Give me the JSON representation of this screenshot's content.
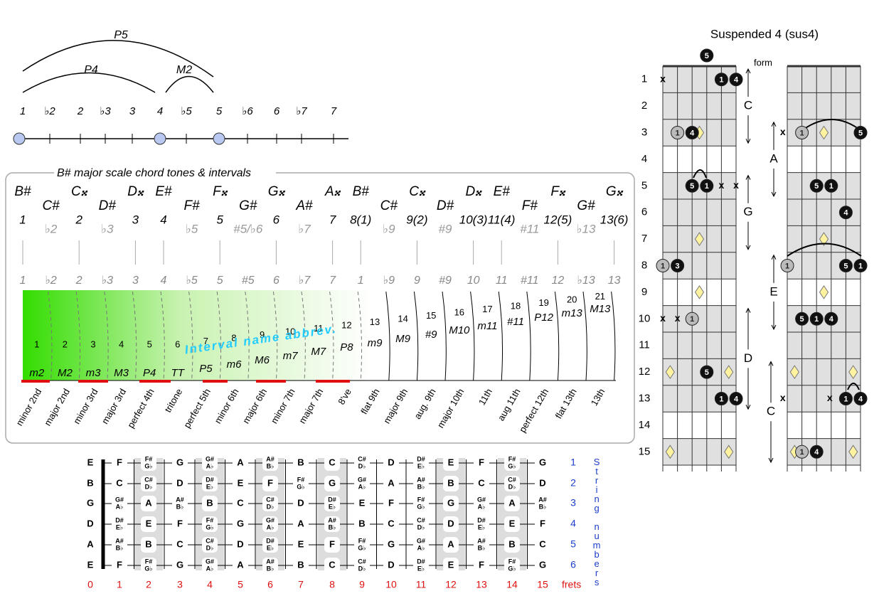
{
  "interval_arcs": {
    "p5": "P5",
    "p4": "P4",
    "m2": "M2"
  },
  "scale_degrees": [
    "1",
    "♭2",
    "2",
    "♭3",
    "3",
    "4",
    "♭5",
    "5",
    "♭6",
    "6",
    "♭7",
    "7"
  ],
  "chord_tones": {
    "title": "B# major scale chord tones & intervals",
    "notes": [
      "B#",
      "C#",
      "C𝄪",
      "D#",
      "D𝄪",
      "E#",
      "F#",
      "F𝄪",
      "G#",
      "G𝄪",
      "A#",
      "A𝄪",
      "B#",
      "C#",
      "C𝄪",
      "D#",
      "D𝄪",
      "E#",
      "F#",
      "F𝄪",
      "G#",
      "G𝄪"
    ],
    "degrees": [
      "1",
      "♭2",
      "2",
      "♭3",
      "3",
      "4",
      "♭5",
      "5",
      "#5/♭6",
      "6",
      "♭7",
      "7",
      "8(1)",
      "♭9",
      "9(2)",
      "#9",
      "10(3)",
      "11(4)",
      "#11",
      "12(5)",
      "♭13",
      "13(6)"
    ],
    "degrees_lower": [
      "1",
      "♭2",
      "2",
      "♭3",
      "3",
      "4",
      "♭5",
      "5",
      "#5",
      "6",
      "♭7",
      "7",
      "1",
      "♭9",
      "9",
      "#9",
      "10",
      "11",
      "#11",
      "12",
      "♭13",
      "13"
    ],
    "interval_numbers": [
      1,
      2,
      3,
      4,
      5,
      6,
      7,
      8,
      9,
      10,
      11,
      12,
      13,
      14,
      15,
      16,
      17,
      18,
      19,
      20,
      21
    ],
    "interval_abbrev_caption": "Interval name abbrev.",
    "interval_abbrevs": [
      "m2",
      "M2",
      "m3",
      "M3",
      "P4",
      "TT",
      "P5",
      "m6",
      "M6",
      "m7",
      "M7",
      "P8",
      "m9",
      "M9",
      "#9",
      "M10",
      "m11",
      "#11",
      "P12",
      "m13",
      "M13"
    ],
    "interval_names": [
      "minor 2nd",
      "major 2nd",
      "minor 3rd",
      "major 3rd",
      "perfect 4th",
      "tritone",
      "perfect 5th",
      "minor 6th",
      "major 6th",
      "minor 7th",
      "major 7th",
      "8've",
      "flat 9th",
      "major 9th",
      "aug. 9th",
      "major 10th",
      "11th",
      "aug 11th",
      "perfect 12th",
      "flat 13th",
      "13th"
    ]
  },
  "fretboard": {
    "open_strings": [
      "E",
      "B",
      "G",
      "D",
      "A",
      "E"
    ],
    "notes": [
      [
        "F",
        [
          "F#",
          "G♭"
        ],
        "G",
        [
          "G#",
          "A♭"
        ],
        "A",
        [
          "A#",
          "B♭"
        ],
        "B",
        "C",
        [
          "C#",
          "D♭"
        ],
        "D",
        [
          "D#",
          "E♭"
        ],
        "E",
        "F",
        [
          "F#",
          "G♭"
        ],
        "G"
      ],
      [
        "C",
        [
          "C#",
          "D♭"
        ],
        "D",
        [
          "D#",
          "E♭"
        ],
        "E",
        "F",
        [
          "F#",
          "G♭"
        ],
        "G",
        [
          "G#",
          "A♭"
        ],
        "A",
        [
          "A#",
          "B♭"
        ],
        "B",
        "C",
        [
          "C#",
          "D♭"
        ],
        "D"
      ],
      [
        [
          "G#",
          "A♭"
        ],
        "A",
        [
          "A#",
          "B♭"
        ],
        "B",
        "C",
        [
          "C#",
          "D♭"
        ],
        "D",
        [
          "D#",
          "E♭"
        ],
        "E",
        "F",
        [
          "F#",
          "G♭"
        ],
        "G",
        [
          "G#",
          "A♭"
        ],
        "A",
        [
          "A#",
          "B♭"
        ]
      ],
      [
        [
          "D#",
          "E♭"
        ],
        "E",
        "F",
        [
          "F#",
          "G♭"
        ],
        "G",
        [
          "G#",
          "A♭"
        ],
        "A",
        [
          "A#",
          "B♭"
        ],
        "B",
        "C",
        [
          "C#",
          "D♭"
        ],
        "D",
        [
          "D#",
          "E♭"
        ],
        "E",
        "F"
      ],
      [
        [
          "A#",
          "B♭"
        ],
        "B",
        "C",
        [
          "C#",
          "D♭"
        ],
        "D",
        [
          "D#",
          "E♭"
        ],
        "E",
        "F",
        [
          "F#",
          "G♭"
        ],
        "G",
        [
          "G#",
          "A♭"
        ],
        "A",
        [
          "A#",
          "B♭"
        ],
        "B",
        "C"
      ],
      [
        "F",
        [
          "F#",
          "G♭"
        ],
        "G",
        [
          "G#",
          "A♭"
        ],
        "A",
        [
          "A#",
          "B♭"
        ],
        "B",
        "C",
        [
          "C#",
          "D♭"
        ],
        "D",
        [
          "D#",
          "E♭"
        ],
        "E",
        "F",
        [
          "F#",
          "G♭"
        ],
        "G"
      ]
    ],
    "string_numbers": [
      1,
      2,
      3,
      4,
      5,
      6
    ],
    "string_numbers_caption": "String numbers",
    "frets": [
      0,
      1,
      2,
      3,
      4,
      5,
      6,
      7,
      8,
      9,
      10,
      11,
      12,
      13,
      14,
      15
    ],
    "frets_caption": "frets"
  },
  "chord_diagrams": {
    "title": "Suspended 4 (sus4)",
    "form_caption": "form",
    "fret_numbers": [
      1,
      2,
      3,
      4,
      5,
      6,
      7,
      8,
      9,
      10,
      11,
      12,
      13,
      14,
      15
    ],
    "forms": [
      "C",
      "G",
      "D",
      "A",
      "E",
      "C"
    ],
    "left_marks": [
      "5",
      "x",
      "1",
      "4",
      "1",
      "4",
      "5",
      "1",
      "x",
      "x",
      "1",
      "3",
      "x",
      "x",
      "1",
      "5",
      "1",
      "4"
    ],
    "right_marks": [
      "x",
      "1",
      "5",
      "5",
      "1",
      "4",
      "1",
      "5",
      "1",
      "5",
      "1",
      "4",
      "x",
      "x",
      "1",
      "4",
      "1",
      "4"
    ]
  }
}
